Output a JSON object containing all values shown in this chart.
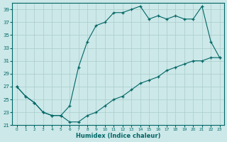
{
  "xlabel": "Humidex (Indice chaleur)",
  "background_color": "#cce8e8",
  "grid_color": "#aacccc",
  "line_color": "#006666",
  "xlim": [
    -0.5,
    23.5
  ],
  "ylim": [
    21,
    40
  ],
  "yticks": [
    21,
    23,
    25,
    27,
    29,
    31,
    33,
    35,
    37,
    39
  ],
  "xticks": [
    0,
    1,
    2,
    3,
    4,
    5,
    6,
    7,
    8,
    9,
    10,
    11,
    12,
    13,
    14,
    15,
    16,
    17,
    18,
    19,
    20,
    21,
    22,
    23
  ],
  "upper_x": [
    0,
    1,
    2,
    3,
    4,
    5,
    6,
    7,
    8,
    9,
    10,
    11,
    12,
    13,
    14,
    15,
    16,
    17,
    18,
    19,
    20,
    21,
    22,
    23
  ],
  "upper_y": [
    27.0,
    25.5,
    24.5,
    23.0,
    22.5,
    22.5,
    24.0,
    30.0,
    34.0,
    36.5,
    37.0,
    38.5,
    38.5,
    39.0,
    39.5,
    37.5,
    38.0,
    37.5,
    38.0,
    37.5,
    37.5,
    39.5,
    34.0,
    31.5
  ],
  "lower_x": [
    0,
    1,
    2,
    3,
    4,
    5,
    6,
    7,
    8,
    9,
    10,
    11,
    12,
    13,
    14,
    15,
    16,
    17,
    18,
    19,
    20,
    21,
    22,
    23
  ],
  "lower_y": [
    27.0,
    25.5,
    24.5,
    23.0,
    22.5,
    22.5,
    21.5,
    21.5,
    22.5,
    23.0,
    24.0,
    25.0,
    25.5,
    26.5,
    27.5,
    28.0,
    28.5,
    29.5,
    30.0,
    30.5,
    31.0,
    31.0,
    31.5,
    31.5
  ]
}
